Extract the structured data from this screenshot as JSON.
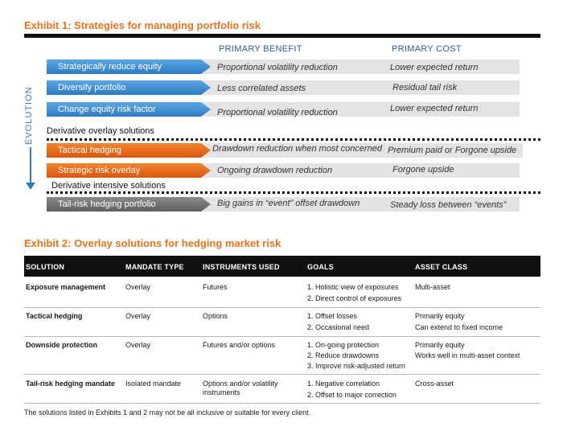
{
  "exhibit1": {
    "title": "Exhibit 1:  Strategies for managing portfolio risk",
    "col_benefit": "PRIMARY BENEFIT",
    "col_cost": "PRIMARY COST",
    "evolution_label": "EVOLUTION",
    "section_overlay": "Derivative overlay solutions",
    "section_intensive": "Derivative intensive solutions",
    "rows": [
      {
        "label": "Strategically reduce equity",
        "benefit": "Proportional volatility reduction",
        "cost": "Lower expected return",
        "color": "#2f7cc4"
      },
      {
        "label": "Diversify portfolio",
        "benefit": "Less correlated assets",
        "cost": "Residual tail risk",
        "color": "#2f7cc4"
      },
      {
        "label": "Change equity risk factor",
        "benefit": "Proportional volatility reduction",
        "cost": "Lower expected return",
        "color": "#2f7cc4"
      },
      {
        "label": "Tactical hedging",
        "benefit": "Drawdown reduction when most concerned",
        "cost": "Premium paid or Forgone upside",
        "color": "#d9560f"
      },
      {
        "label": "Strategic risk overlay",
        "benefit": "Ongoing drawdown reduction",
        "cost": "Forgone upside",
        "color": "#d9560f"
      },
      {
        "label": "Tail-risk hedging portfolio",
        "benefit": "Big gains in “event” offset drawdown",
        "cost": "Steady loss between “events”",
        "color": "#6b6b6b"
      }
    ]
  },
  "exhibit2": {
    "title": "Exhibit 2: Overlay solutions for hedging market risk",
    "headers": [
      "SOLUTION",
      "MANDATE TYPE",
      "INSTRUMENTS USED",
      "GOALS",
      "ASSET CLASS"
    ],
    "rows": [
      {
        "solution": "Exposure management",
        "mandate": "Overlay",
        "instruments": "Futures",
        "goals": [
          "1. Holistic view of exposures",
          "2. Direct control of exposures"
        ],
        "asset": [
          "Multi-asset"
        ]
      },
      {
        "solution": "Tactical hedging",
        "mandate": "Overlay",
        "instruments": "Options",
        "goals": [
          "1. Offset losses",
          "2. Occasional need"
        ],
        "asset": [
          "Primarily equity",
          "Can extend to fixed income"
        ]
      },
      {
        "solution": "Downside protection",
        "mandate": "Overlay",
        "instruments": "Futures and/or options",
        "goals": [
          "1. On-going protection",
          "2. Reduce drawdowns",
          "3. Improve risk-adjusted return"
        ],
        "asset": [
          "Primarily equity",
          "Works well in multi-asset context"
        ]
      },
      {
        "solution": "Tail-risk hedging mandate",
        "mandate": "Isolated mandate",
        "instruments": "Options and/or volatility instruments",
        "goals": [
          "1. Negative correlation",
          "2. Offset to major correction"
        ],
        "asset": [
          "Cross-asset"
        ]
      }
    ]
  },
  "footnote": "The solutions listed in Exhibits 1 and 2 may not be all inclusive or suitable for every client."
}
